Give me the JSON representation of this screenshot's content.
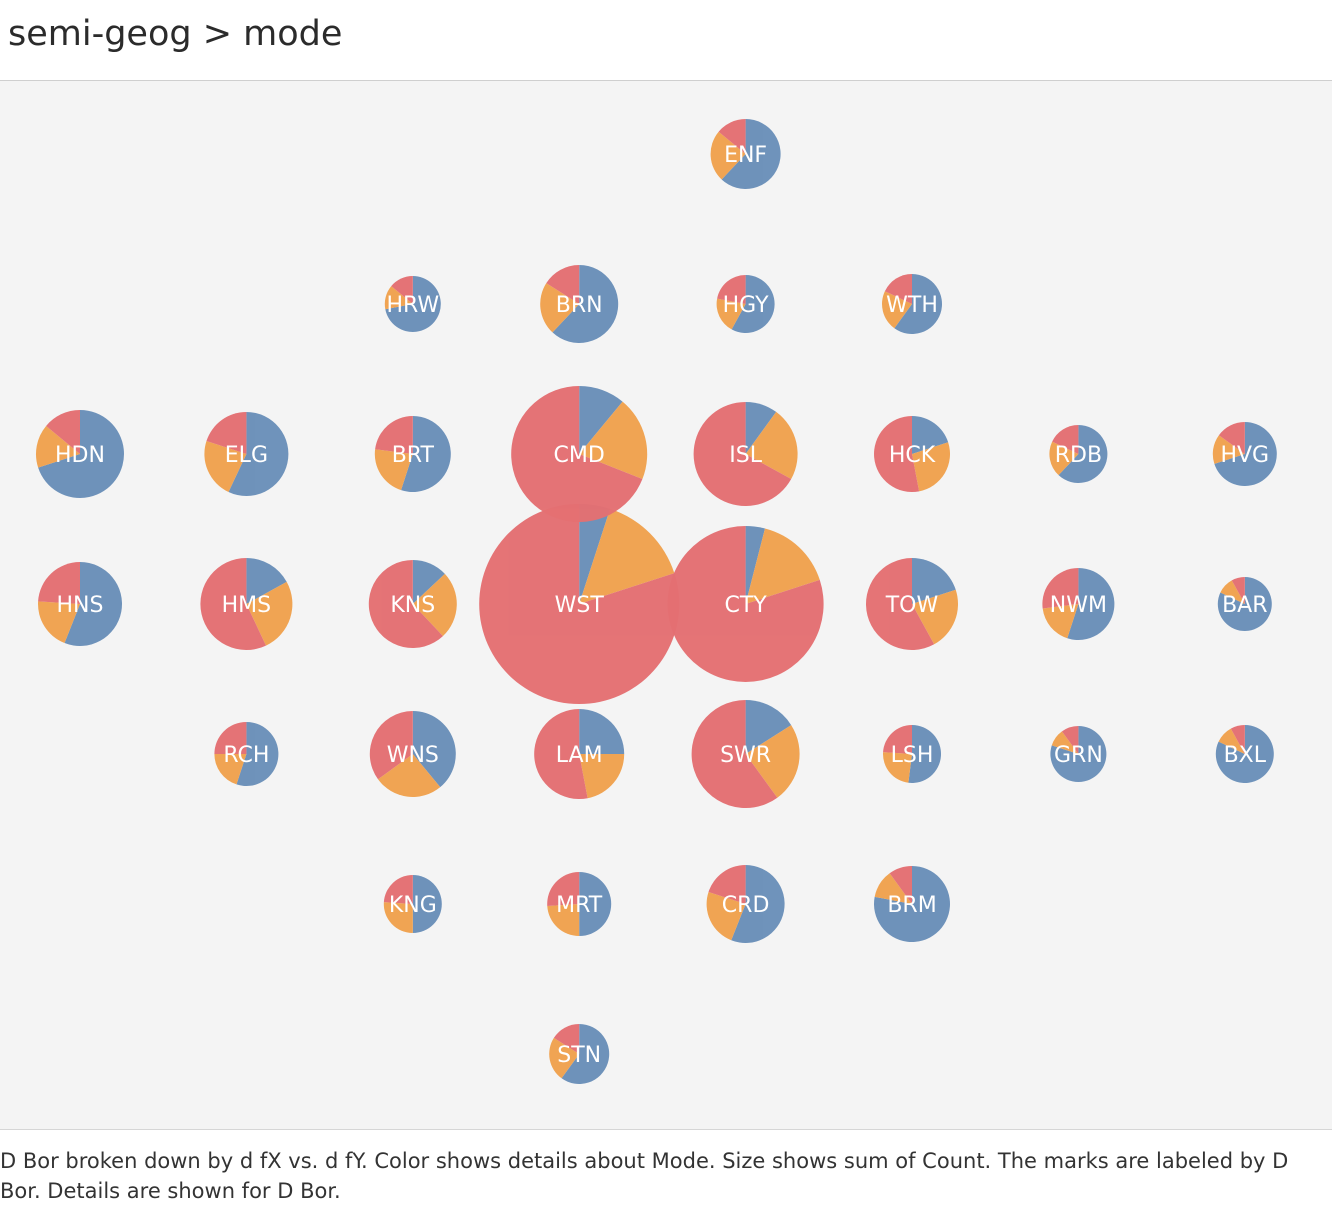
{
  "title": "semi-geog > mode",
  "caption": "D Bor broken down by d fX vs. d fY.  Color shows details about Mode.  Size shows sum of Count.  The marks are labeled by D Bor.  Details are shown for D Bor.",
  "colors": {
    "blue": "#6a8fb9",
    "orange": "#f0a24e",
    "red": "#e46f72",
    "background": "#f4f4f4"
  },
  "chart_data": {
    "type": "scatter",
    "title": "semi-geog > mode",
    "xlabel": "d fX",
    "ylabel": "d fY",
    "grid": false,
    "legend": "none",
    "series_order": [
      "blue",
      "orange",
      "red"
    ],
    "points": [
      {
        "label": "ENF",
        "x": 5,
        "y": 1,
        "size": 35,
        "shares": [
          0.62,
          0.24,
          0.14
        ]
      },
      {
        "label": "HRW",
        "x": 3,
        "y": 2,
        "size": 28,
        "shares": [
          0.72,
          0.14,
          0.14
        ]
      },
      {
        "label": "BRN",
        "x": 4,
        "y": 2,
        "size": 39,
        "shares": [
          0.62,
          0.22,
          0.16
        ]
      },
      {
        "label": "HGY",
        "x": 5,
        "y": 2,
        "size": 29,
        "shares": [
          0.58,
          0.2,
          0.22
        ]
      },
      {
        "label": "WTH",
        "x": 6,
        "y": 2,
        "size": 30,
        "shares": [
          0.6,
          0.22,
          0.18
        ]
      },
      {
        "label": "HDN",
        "x": 1,
        "y": 3,
        "size": 44,
        "shares": [
          0.7,
          0.16,
          0.14
        ]
      },
      {
        "label": "ELG",
        "x": 2,
        "y": 3,
        "size": 42,
        "shares": [
          0.57,
          0.23,
          0.2
        ]
      },
      {
        "label": "BRT",
        "x": 3,
        "y": 3,
        "size": 38,
        "shares": [
          0.55,
          0.22,
          0.23
        ]
      },
      {
        "label": "CMD",
        "x": 4,
        "y": 3,
        "size": 68,
        "shares": [
          0.11,
          0.2,
          0.69
        ]
      },
      {
        "label": "ISL",
        "x": 5,
        "y": 3,
        "size": 52,
        "shares": [
          0.1,
          0.23,
          0.67
        ]
      },
      {
        "label": "HCK",
        "x": 6,
        "y": 3,
        "size": 38,
        "shares": [
          0.2,
          0.27,
          0.53
        ]
      },
      {
        "label": "RDB",
        "x": 7,
        "y": 3,
        "size": 29,
        "shares": [
          0.62,
          0.2,
          0.18
        ]
      },
      {
        "label": "HVG",
        "x": 8,
        "y": 3,
        "size": 32,
        "shares": [
          0.7,
          0.15,
          0.15
        ]
      },
      {
        "label": "HNS",
        "x": 1,
        "y": 4,
        "size": 42,
        "shares": [
          0.56,
          0.2,
          0.24
        ]
      },
      {
        "label": "HMS",
        "x": 2,
        "y": 4,
        "size": 46,
        "shares": [
          0.17,
          0.26,
          0.57
        ]
      },
      {
        "label": "KNS",
        "x": 3,
        "y": 4,
        "size": 44,
        "shares": [
          0.13,
          0.25,
          0.62
        ]
      },
      {
        "label": "WST",
        "x": 4,
        "y": 4,
        "size": 100,
        "shares": [
          0.05,
          0.15,
          0.8
        ]
      },
      {
        "label": "CTY",
        "x": 5,
        "y": 4,
        "size": 78,
        "shares": [
          0.04,
          0.16,
          0.8
        ]
      },
      {
        "label": "TOW",
        "x": 6,
        "y": 4,
        "size": 46,
        "shares": [
          0.2,
          0.22,
          0.58
        ]
      },
      {
        "label": "NWM",
        "x": 7,
        "y": 4,
        "size": 36,
        "shares": [
          0.55,
          0.18,
          0.27
        ]
      },
      {
        "label": "BAR",
        "x": 8,
        "y": 4,
        "size": 27,
        "shares": [
          0.82,
          0.1,
          0.08
        ]
      },
      {
        "label": "RCH",
        "x": 2,
        "y": 5,
        "size": 32,
        "shares": [
          0.55,
          0.2,
          0.25
        ]
      },
      {
        "label": "WNS",
        "x": 3,
        "y": 5,
        "size": 43,
        "shares": [
          0.39,
          0.26,
          0.35
        ]
      },
      {
        "label": "LAM",
        "x": 4,
        "y": 5,
        "size": 45,
        "shares": [
          0.25,
          0.22,
          0.53
        ]
      },
      {
        "label": "SWR",
        "x": 5,
        "y": 5,
        "size": 54,
        "shares": [
          0.16,
          0.24,
          0.6
        ]
      },
      {
        "label": "LSH",
        "x": 6,
        "y": 5,
        "size": 29,
        "shares": [
          0.52,
          0.24,
          0.24
        ]
      },
      {
        "label": "GRN",
        "x": 7,
        "y": 5,
        "size": 28,
        "shares": [
          0.8,
          0.1,
          0.1
        ]
      },
      {
        "label": "BXL",
        "x": 8,
        "y": 5,
        "size": 29,
        "shares": [
          0.82,
          0.1,
          0.08
        ]
      },
      {
        "label": "KNG",
        "x": 3,
        "y": 6,
        "size": 29,
        "shares": [
          0.5,
          0.26,
          0.24
        ]
      },
      {
        "label": "MRT",
        "x": 4,
        "y": 6,
        "size": 32,
        "shares": [
          0.5,
          0.24,
          0.26
        ]
      },
      {
        "label": "CRD",
        "x": 5,
        "y": 6,
        "size": 39,
        "shares": [
          0.56,
          0.24,
          0.2
        ]
      },
      {
        "label": "BRM",
        "x": 6,
        "y": 6,
        "size": 38,
        "shares": [
          0.78,
          0.12,
          0.1
        ]
      },
      {
        "label": "STN",
        "x": 4,
        "y": 7,
        "size": 30,
        "shares": [
          0.6,
          0.24,
          0.16
        ]
      }
    ]
  }
}
